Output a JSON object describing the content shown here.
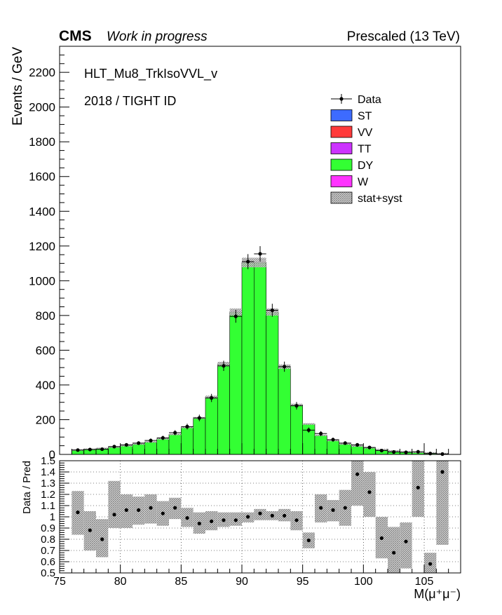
{
  "header": {
    "experiment": "CMS",
    "status": "Work in progress",
    "right_label": "Prescaled (13 TeV)"
  },
  "annotations": {
    "trigger": "HLT_Mu8_TrkIsoVVL_v",
    "selection": "2018 / TIGHT ID"
  },
  "legend": [
    {
      "label": "Data",
      "kind": "marker",
      "color": "#000000"
    },
    {
      "label": "ST",
      "kind": "fill",
      "color": "#3d6bff"
    },
    {
      "label": "VV",
      "kind": "fill",
      "color": "#ff3a3a"
    },
    {
      "label": "TT",
      "kind": "fill",
      "color": "#cc33ff"
    },
    {
      "label": "DY",
      "kind": "fill",
      "color": "#33ff33"
    },
    {
      "label": "W",
      "kind": "fill",
      "color": "#ff33ff"
    },
    {
      "label": "stat+syst",
      "kind": "hatch",
      "color": "#888888"
    }
  ],
  "chart_data": [
    {
      "type": "bar",
      "panel": "main",
      "ylabel": "Events / GeV",
      "ylim": [
        0,
        2350
      ],
      "yticks": [
        0,
        200,
        400,
        600,
        800,
        1000,
        1200,
        1400,
        1600,
        1800,
        2000,
        2200
      ],
      "xlim": [
        75,
        108
      ],
      "bin_edges": [
        76,
        77,
        78,
        79,
        80,
        81,
        82,
        83,
        84,
        85,
        86,
        87,
        88,
        89,
        90,
        91,
        92,
        93,
        94,
        95,
        96,
        97,
        98,
        99,
        100,
        101,
        102,
        103,
        104,
        105,
        106,
        107
      ],
      "series": [
        {
          "name": "DY",
          "color": "#33ff33",
          "values": [
            25,
            30,
            35,
            42,
            50,
            60,
            72,
            90,
            115,
            155,
            210,
            330,
            520,
            820,
            1105,
            1105,
            820,
            505,
            285,
            175,
            110,
            80,
            60,
            48,
            38,
            28,
            20,
            15,
            12,
            8,
            5
          ]
        },
        {
          "name": "Data",
          "color": "#000000",
          "values": [
            25,
            28,
            30,
            45,
            55,
            65,
            80,
            95,
            125,
            160,
            210,
            325,
            510,
            795,
            1110,
            1155,
            830,
            505,
            280,
            140,
            120,
            85,
            65,
            55,
            40,
            22,
            14,
            12,
            15,
            5,
            2
          ]
        }
      ]
    },
    {
      "type": "scatter",
      "panel": "ratio",
      "ylabel": "Data / Pred",
      "xlabel": "M(μ⁺μ⁻)",
      "ylim": [
        0.5,
        1.5
      ],
      "yticks": [
        0.5,
        0.6,
        0.7,
        0.8,
        0.9,
        1.0,
        1.1,
        1.2,
        1.3,
        1.4,
        1.5
      ],
      "ytick_labels": [
        "0.5",
        "0.6",
        "0.7",
        "0.8",
        "0.9",
        "1",
        "1.1",
        "1.2",
        "1.3",
        "1.4",
        "1.5"
      ],
      "xticks": [
        75,
        80,
        85,
        90,
        95,
        100,
        105
      ],
      "xlim": [
        75,
        108
      ],
      "grid": true,
      "x": [
        76.5,
        77.5,
        78.5,
        79.5,
        80.5,
        81.5,
        82.5,
        83.5,
        84.5,
        85.5,
        86.5,
        87.5,
        88.5,
        89.5,
        90.5,
        91.5,
        92.5,
        93.5,
        94.5,
        95.5,
        96.5,
        97.5,
        98.5,
        99.5,
        100.5,
        101.5,
        102.5,
        103.5,
        104.5,
        105.5,
        106.5
      ],
      "ratio": [
        1.04,
        0.88,
        0.8,
        1.02,
        1.06,
        1.06,
        1.08,
        1.03,
        1.08,
        0.99,
        0.94,
        0.96,
        0.97,
        0.97,
        1.0,
        1.03,
        1.01,
        1.01,
        0.97,
        0.79,
        1.08,
        1.06,
        1.08,
        1.38,
        1.22,
        0.81,
        0.68,
        0.78,
        1.26,
        0.58,
        1.4
      ],
      "band_low": [
        0.84,
        0.7,
        0.64,
        0.9,
        0.9,
        0.93,
        0.94,
        0.92,
        0.98,
        0.91,
        0.85,
        0.88,
        0.91,
        0.92,
        0.95,
        0.97,
        0.97,
        0.96,
        0.88,
        0.72,
        0.95,
        0.96,
        0.92,
        1.1,
        1.0,
        0.63,
        0.5,
        0.54,
        1.0,
        0.5,
        0.75
      ],
      "band_high": [
        1.23,
        1.05,
        0.98,
        1.32,
        1.2,
        1.18,
        1.2,
        1.14,
        1.17,
        1.08,
        1.04,
        1.05,
        1.04,
        1.04,
        1.04,
        1.07,
        1.05,
        1.07,
        1.05,
        0.86,
        1.2,
        1.15,
        1.24,
        1.5,
        1.4,
        1.0,
        0.91,
        0.95,
        1.5,
        0.68,
        1.5
      ]
    }
  ]
}
